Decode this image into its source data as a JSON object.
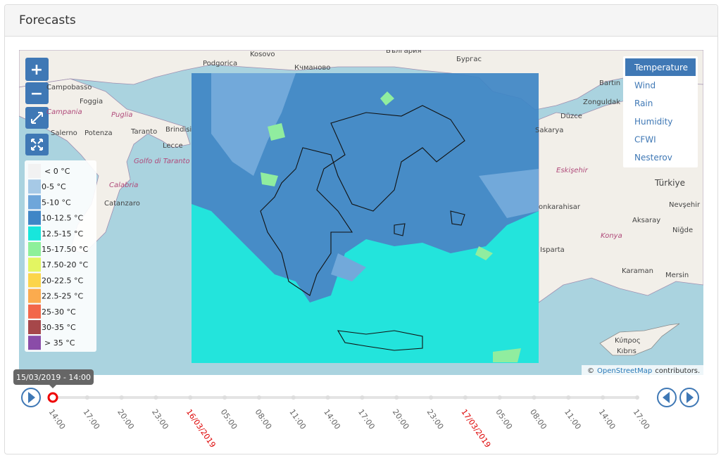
{
  "header": {
    "title": "Forecasts"
  },
  "map": {
    "controls": [
      "+",
      "−"
    ],
    "labels": [
      "Kosovo",
      "България",
      "Podgorica",
      "Кчманово",
      "Бургас",
      "Campobasso",
      "Foggia",
      "Campania",
      "Puglia",
      "Salerno",
      "Potenza",
      "Taranto",
      "Brindisi",
      "Lecce",
      "Golfo di Taranto",
      "Calabria",
      "Catanzaro",
      "Bartın",
      "Zonguldak",
      "Düzce",
      "Sakarya",
      "Eskişehir",
      "Türkiye",
      "Nevşehir",
      "onkarahisar",
      "Aksaray",
      "Konya",
      "Niğde",
      "Isparta",
      "Karaman",
      "Mersin",
      "Κύπρος",
      "Kıbrıs"
    ],
    "attribution": {
      "prefix": "©",
      "link": "OpenStreetMap",
      "suffix": "contributors."
    }
  },
  "legend": {
    "items": [
      {
        "label": "< 0 °C",
        "color": "#f2f2f2"
      },
      {
        "label": "0-5 °C",
        "color": "#a6c9e6"
      },
      {
        "label": "5-10 °C",
        "color": "#6ea6da"
      },
      {
        "label": "10-12.5 °C",
        "color": "#3f86c6"
      },
      {
        "label": "12.5-15 °C",
        "color": "#18e6dc"
      },
      {
        "label": "15-17.50 °C",
        "color": "#8ef09a"
      },
      {
        "label": "17.50-20 °C",
        "color": "#e3f562"
      },
      {
        "label": "20-22.5 °C",
        "color": "#fcd54a"
      },
      {
        "label": "22.5-25 °C",
        "color": "#fbab4e"
      },
      {
        "label": "25-30 °C",
        "color": "#f2674a"
      },
      {
        "label": "30-35 °C",
        "color": "#a6474a"
      },
      {
        "label": "> 35 °C",
        "color": "#8a4ca8"
      }
    ]
  },
  "layers": {
    "items": [
      "Temperature",
      "Wind",
      "Rain",
      "Humidity",
      "CFWI",
      "Nesterov"
    ],
    "active": 0
  },
  "timeline": {
    "current": "15/03/2019 - 14:00",
    "ticks": [
      "14:00",
      "17:00",
      "20:00",
      "23:00",
      "16/03/2019",
      "05:00",
      "08:00",
      "11:00",
      "14:00",
      "17:00",
      "20:00",
      "23:00",
      "17/03/2019",
      "05:00",
      "08:00",
      "11:00",
      "14:00",
      "17:00"
    ]
  }
}
